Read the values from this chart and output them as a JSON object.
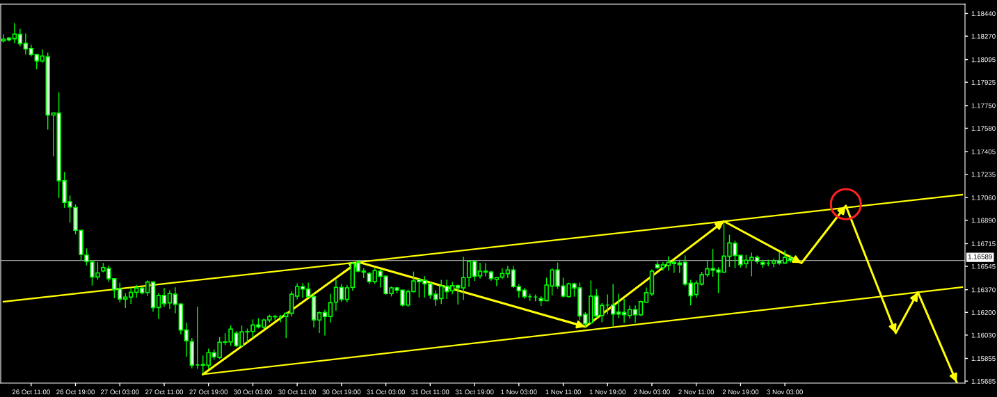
{
  "chart_data": {
    "type": "candlestick",
    "categories": [
      null,
      null,
      null,
      null,
      null,
      "26 Oct 11:00",
      null,
      null,
      null,
      null,
      null,
      null,
      null,
      "26 Oct 19:00",
      null,
      null,
      null,
      null,
      null,
      null,
      null,
      "27 Oct 03:00",
      null,
      null,
      null,
      null,
      null,
      null,
      null,
      "27 Oct 11:00",
      null,
      null,
      null,
      null,
      null,
      null,
      null,
      "27 Oct 19:00",
      null,
      null,
      null,
      null,
      null,
      null,
      null,
      "30 Oct 03:00",
      null,
      null,
      null,
      null,
      null,
      null,
      null,
      "30 Oct 11:00",
      null,
      null,
      null,
      null,
      null,
      null,
      null,
      "30 Oct 19:00",
      null,
      null,
      null,
      null,
      null,
      null,
      null,
      "31 Oct 03:00",
      null,
      null,
      null,
      null,
      null,
      null,
      null,
      "31 Oct 11:00",
      null,
      null,
      null,
      null,
      null,
      null,
      null,
      "31 Oct 19:00",
      null,
      null,
      null,
      null,
      null,
      null,
      null,
      "1 Nov 03:00",
      null,
      null,
      null,
      null,
      null,
      null,
      null,
      "1 Nov 11:00",
      null,
      null,
      null,
      null,
      null,
      null,
      null,
      "1 Nov 19:00",
      null,
      null,
      null,
      null,
      null,
      null,
      null,
      "2 Nov 03:00",
      null,
      null,
      null,
      null,
      null,
      null,
      null,
      "2 Nov 11:00",
      null,
      null,
      null,
      null,
      null,
      null,
      null,
      "2 Nov 19:00",
      null,
      null,
      null,
      null,
      null,
      null,
      null,
      "3 Nov 03:00",
      null,
      null,
      null,
      null,
      null,
      null,
      null,
      null,
      null,
      null,
      null,
      null,
      null,
      null,
      null,
      null,
      null,
      null,
      null,
      null,
      null,
      null,
      null,
      null,
      null,
      null,
      null,
      null,
      null,
      null,
      null,
      null
    ],
    "ylim": [
      1.1567,
      1.1851
    ],
    "yticks": [
      {
        "value": 1.1844,
        "label": "1.18440"
      },
      {
        "value": 1.1827,
        "label": "1.18270"
      },
      1.18095,
      1.17925,
      {
        "value": 1.1775,
        "label": "1.17750"
      },
      {
        "value": 1.1758,
        "label": "1.17580"
      },
      1.17405,
      1.17235,
      {
        "value": 1.1706,
        "label": "1.17060"
      },
      {
        "value": 1.1689,
        "label": "1.16890"
      },
      1.16715,
      1.16545,
      {
        "value": 1.1637,
        "label": "1.16370"
      },
      {
        "value": 1.162,
        "label": "1.16200"
      },
      {
        "value": 1.1603,
        "label": "1.16030"
      },
      1.15855,
      1.15685
    ],
    "ref_lines": [
      {
        "axis": "y",
        "value": 1.16589,
        "label": "1.16589",
        "color": "#a0a0a0"
      }
    ],
    "series": [
      {
        "color": "#00ff00",
        "ohlc": [
          [
            1.18235,
            1.18281,
            1.18226,
            1.18248
          ],
          [
            1.18255,
            1.1826,
            1.18235,
            1.18242
          ],
          [
            1.18251,
            1.18364,
            1.18221,
            1.18286
          ],
          [
            1.18283,
            1.18322,
            1.18198,
            1.18215
          ],
          [
            1.18216,
            1.18286,
            1.18136,
            1.18174
          ],
          [
            1.18178,
            1.18202,
            1.18121,
            1.18132
          ],
          [
            1.18132,
            1.18132,
            1.18026,
            1.18085
          ],
          [
            1.18085,
            1.18166,
            1.18074,
            1.18121
          ],
          [
            1.18116,
            1.18144,
            1.17573,
            1.17679
          ],
          [
            1.17679,
            1.17694,
            1.17373,
            1.17694
          ],
          [
            1.17694,
            1.17846,
            1.17061,
            1.17187
          ],
          [
            1.17187,
            1.1725,
            1.16987,
            1.17024
          ],
          [
            1.1703,
            1.17072,
            1.16877,
            1.1699
          ],
          [
            1.16987,
            1.17006,
            1.16789,
            1.16815
          ],
          [
            1.16815,
            1.16815,
            1.16593,
            1.16634
          ],
          [
            1.1663,
            1.16676,
            1.16556,
            1.16582
          ],
          [
            1.16577,
            1.16587,
            1.16405,
            1.16465
          ],
          [
            1.16465,
            1.16572,
            1.16448,
            1.16496
          ],
          [
            1.16511,
            1.16567,
            1.16504,
            1.16536
          ],
          [
            1.16529,
            1.16547,
            1.16431,
            1.16452
          ],
          [
            1.16452,
            1.16452,
            1.16309,
            1.1637
          ],
          [
            1.16377,
            1.16419,
            1.16278,
            1.163
          ],
          [
            1.163,
            1.1634,
            1.16236,
            1.16314
          ],
          [
            1.16314,
            1.16382,
            1.16267,
            1.16351
          ],
          [
            1.16351,
            1.16401,
            1.16313,
            1.16382
          ],
          [
            1.16382,
            1.16386,
            1.1634,
            1.16346
          ],
          [
            1.16349,
            1.16437,
            1.16327,
            1.16428
          ],
          [
            1.16428,
            1.16428,
            1.16208,
            1.16236
          ],
          [
            1.16236,
            1.16342,
            1.16153,
            1.16327
          ],
          [
            1.16327,
            1.16379,
            1.16244,
            1.16266
          ],
          [
            1.16271,
            1.16362,
            1.16228,
            1.16341
          ],
          [
            1.16336,
            1.16384,
            1.16197,
            1.16261
          ],
          [
            1.16263,
            1.16263,
            1.1604,
            1.16068
          ],
          [
            1.16068,
            1.16118,
            1.1587,
            1.15987
          ],
          [
            1.15981,
            1.16005,
            1.15785,
            1.15804
          ],
          [
            1.15806,
            1.1624,
            1.1578,
            1.15806
          ],
          [
            1.15804,
            1.15872,
            1.15745,
            1.15809
          ],
          [
            1.15804,
            1.15924,
            1.1578,
            1.15898
          ],
          [
            1.15898,
            1.15919,
            1.15849,
            1.15867
          ],
          [
            1.15862,
            1.16011,
            1.15854,
            1.15976
          ],
          [
            1.15976,
            1.1604,
            1.15958,
            1.15979
          ],
          [
            1.15979,
            1.16098,
            1.15953,
            1.16075
          ],
          [
            1.16044,
            1.16057,
            1.15945,
            1.1595
          ],
          [
            1.1595,
            1.16098,
            1.15945,
            1.16054
          ],
          [
            1.16054,
            1.16075,
            1.15979,
            1.16056
          ],
          [
            1.16057,
            1.16144,
            1.16014,
            1.16106
          ],
          [
            1.16106,
            1.16153,
            1.16083,
            1.16092
          ],
          [
            1.16089,
            1.16151,
            1.1608,
            1.16143
          ],
          [
            1.16143,
            1.16179,
            1.16127,
            1.16169
          ],
          [
            1.16169,
            1.16179,
            1.16144,
            1.16167
          ],
          [
            1.16167,
            1.16179,
            1.1613,
            1.16167
          ],
          [
            1.16169,
            1.16197,
            1.16011,
            1.16193
          ],
          [
            1.16193,
            1.16356,
            1.16171,
            1.16336
          ],
          [
            1.16322,
            1.16414,
            1.16301,
            1.16393
          ],
          [
            1.16393,
            1.16414,
            1.16313,
            1.16375
          ],
          [
            1.16375,
            1.16419,
            1.16315,
            1.16318
          ],
          [
            1.16318,
            1.16336,
            1.1609,
            1.16144
          ],
          [
            1.16143,
            1.16205,
            1.16049,
            1.16197
          ],
          [
            1.162,
            1.16217,
            1.16031,
            1.16169
          ],
          [
            1.16169,
            1.16336,
            1.16127,
            1.16273
          ],
          [
            1.16277,
            1.1644,
            1.16217,
            1.16388
          ],
          [
            1.16388,
            1.16409,
            1.16284,
            1.16297
          ],
          [
            1.16297,
            1.16401,
            1.16278,
            1.16384
          ],
          [
            1.16388,
            1.16575,
            1.16367,
            1.16565
          ],
          [
            1.16575,
            1.16587,
            1.16504,
            1.16509
          ],
          [
            1.16509,
            1.16527,
            1.16461,
            1.16502
          ],
          [
            1.16492,
            1.165,
            1.16414,
            1.1643
          ],
          [
            1.1643,
            1.16526,
            1.16419,
            1.16513
          ],
          [
            1.16509,
            1.16518,
            1.16391,
            1.16471
          ],
          [
            1.16471,
            1.16474,
            1.16336,
            1.16341
          ],
          [
            1.16341,
            1.16391,
            1.16323,
            1.16384
          ],
          [
            1.16383,
            1.16388,
            1.16349,
            1.16367
          ],
          [
            1.16367,
            1.16367,
            1.16249,
            1.16255
          ],
          [
            1.16255,
            1.16367,
            1.16245,
            1.16356
          ],
          [
            1.16356,
            1.16502,
            1.16353,
            1.16435
          ],
          [
            1.16445,
            1.16448,
            1.16315,
            1.1643
          ],
          [
            1.1644,
            1.16468,
            1.16315,
            1.16414
          ],
          [
            1.16414,
            1.16422,
            1.16306,
            1.1633
          ],
          [
            1.16336,
            1.16362,
            1.16252,
            1.16297
          ],
          [
            1.16304,
            1.1644,
            1.16266,
            1.16396
          ],
          [
            1.16396,
            1.16441,
            1.16304,
            1.16356
          ],
          [
            1.16362,
            1.16426,
            1.16339,
            1.164
          ],
          [
            1.164,
            1.16405,
            1.16263,
            1.16384
          ],
          [
            1.16383,
            1.16613,
            1.16297,
            1.16461
          ],
          [
            1.16461,
            1.16589,
            1.16396,
            1.16582
          ],
          [
            1.16582,
            1.16582,
            1.1644,
            1.16471
          ],
          [
            1.16474,
            1.16568,
            1.16457,
            1.16509
          ],
          [
            1.16509,
            1.16565,
            1.16474,
            1.16502
          ],
          [
            1.16502,
            1.16509,
            1.16441,
            1.16453
          ],
          [
            1.16448,
            1.16461,
            1.16401,
            1.16461
          ],
          [
            1.16464,
            1.16527,
            1.16453,
            1.16492
          ],
          [
            1.1649,
            1.16544,
            1.16461,
            1.16518
          ],
          [
            1.16518,
            1.16544,
            1.16388,
            1.16393
          ],
          [
            1.16393,
            1.16409,
            1.16313,
            1.16362
          ],
          [
            1.16367,
            1.16379,
            1.16307,
            1.16318
          ],
          [
            1.16318,
            1.16336,
            1.16288,
            1.16318
          ],
          [
            1.16315,
            1.1633,
            1.16287,
            1.16315
          ],
          [
            1.16304,
            1.16318,
            1.16252,
            1.16288
          ],
          [
            1.16288,
            1.16457,
            1.16287,
            1.16405
          ],
          [
            1.16398,
            1.16527,
            1.16331,
            1.16518
          ],
          [
            1.16518,
            1.1657,
            1.1638,
            1.16396
          ],
          [
            1.16398,
            1.16457,
            1.16315,
            1.16322
          ],
          [
            1.16318,
            1.16419,
            1.16315,
            1.16414
          ],
          [
            1.16414,
            1.16419,
            1.16322,
            1.16383
          ],
          [
            1.16383,
            1.16419,
            1.16144,
            1.16174
          ],
          [
            1.16185,
            1.16197,
            1.16089,
            1.16115
          ],
          [
            1.16122,
            1.16436,
            1.16113,
            1.16322
          ],
          [
            1.16322,
            1.16371,
            1.16162,
            1.16174
          ],
          [
            1.16177,
            1.16266,
            1.1613,
            1.16252
          ],
          [
            1.16255,
            1.16331,
            1.16188,
            1.16255
          ],
          [
            1.16255,
            1.16409,
            1.16101,
            1.16188
          ],
          [
            1.16202,
            1.16336,
            1.16162,
            1.16188
          ],
          [
            1.162,
            1.16297,
            1.16124,
            1.16182
          ],
          [
            1.16176,
            1.16247,
            1.16156,
            1.16221
          ],
          [
            1.16221,
            1.16249,
            1.16124,
            1.16182
          ],
          [
            1.16182,
            1.16284,
            1.16176,
            1.1628
          ],
          [
            1.16276,
            1.16383,
            1.16276,
            1.16348
          ],
          [
            1.16339,
            1.16518,
            1.16327,
            1.16509
          ],
          [
            1.16558,
            1.16582,
            1.1653,
            1.16534
          ],
          [
            1.16534,
            1.16573,
            1.16516,
            1.16556
          ],
          [
            1.16552,
            1.16617,
            1.16516,
            1.16575
          ],
          [
            1.16575,
            1.16586,
            1.165,
            1.16565
          ],
          [
            1.1657,
            1.16592,
            1.165,
            1.16558
          ],
          [
            1.16575,
            1.16622,
            1.16401,
            1.16412
          ],
          [
            1.16419,
            1.1644,
            1.16256,
            1.16325
          ],
          [
            1.16334,
            1.16435,
            1.16313,
            1.16419
          ],
          [
            1.16412,
            1.165,
            1.16405,
            1.16482
          ],
          [
            1.16482,
            1.16582,
            1.16469,
            1.16527
          ],
          [
            1.16528,
            1.16671,
            1.16469,
            1.16516
          ],
          [
            1.16518,
            1.16535,
            1.16349,
            1.16502
          ],
          [
            1.16501,
            1.16869,
            1.165,
            1.16622
          ],
          [
            1.1662,
            1.16778,
            1.16544,
            1.16721
          ],
          [
            1.16718,
            1.16735,
            1.16535,
            1.16627
          ],
          [
            1.16627,
            1.16627,
            1.16539,
            1.16558
          ],
          [
            1.16565,
            1.16627,
            1.16535,
            1.16591
          ],
          [
            1.16591,
            1.16645,
            1.16474,
            1.16613
          ],
          [
            1.16613,
            1.16622,
            1.16568,
            1.16582
          ],
          [
            1.16575,
            1.16592,
            1.16539,
            1.16561
          ],
          [
            1.16568,
            1.16592,
            1.16551,
            1.16568
          ],
          [
            1.16568,
            1.16601,
            1.16542,
            1.16586
          ],
          [
            1.16586,
            1.16645,
            1.16561,
            1.1657
          ],
          [
            1.1657,
            1.1666,
            1.16568,
            1.16613
          ],
          [
            1.16604,
            1.16627,
            1.16578,
            1.16589
          ],
          null,
          null,
          null,
          null,
          null,
          null,
          null,
          null,
          null,
          null,
          null,
          null,
          null,
          null,
          null,
          null,
          null,
          null,
          null,
          null,
          null,
          null,
          null,
          null,
          null,
          null,
          null,
          null,
          null,
          null,
          null
        ]
      },
      {
        "type": "line",
        "color": "#ffff00",
        "values": [
          1.1628,
          null,
          null,
          null,
          null,
          null,
          null,
          null,
          null,
          null,
          null,
          null,
          null,
          null,
          null,
          null,
          null,
          null,
          null,
          null,
          null,
          null,
          null,
          null,
          null,
          null,
          null,
          null,
          null,
          null,
          null,
          null,
          null,
          null,
          null,
          null,
          null,
          null,
          null,
          null,
          null,
          null,
          null,
          null,
          null,
          null,
          null,
          null,
          null,
          null,
          null,
          null,
          null,
          null,
          null,
          null,
          null,
          null,
          null,
          null,
          null,
          null,
          null,
          null,
          null,
          null,
          null,
          null,
          null,
          null,
          null,
          null,
          null,
          null,
          null,
          null,
          null,
          null,
          null,
          null,
          null,
          null,
          null,
          null,
          null,
          null,
          null,
          null,
          null,
          null,
          null,
          null,
          null,
          null,
          null,
          null,
          null,
          null,
          null,
          null,
          null,
          null,
          null,
          null,
          null,
          null,
          null,
          null,
          null,
          null,
          null,
          null,
          null,
          null,
          null,
          null,
          null,
          null,
          null,
          null,
          null,
          null,
          null,
          null,
          null,
          null,
          null,
          null,
          null,
          null,
          null,
          null,
          null,
          null,
          null,
          null,
          null,
          null,
          null,
          null,
          null,
          null,
          null,
          null,
          null,
          null,
          null,
          null,
          null,
          null,
          null,
          null,
          null,
          null,
          null,
          null,
          null,
          null,
          null,
          null,
          null,
          null,
          null,
          null,
          null,
          null,
          null,
          null,
          null,
          null,
          null,
          null,
          null,
          1.17082
        ]
      },
      {
        "type": "line",
        "color": "#ffff00",
        "values": [
          null,
          null,
          null,
          null,
          null,
          null,
          null,
          null,
          null,
          null,
          null,
          null,
          null,
          null,
          null,
          null,
          null,
          null,
          null,
          null,
          null,
          null,
          null,
          null,
          null,
          null,
          null,
          null,
          null,
          null,
          null,
          null,
          null,
          null,
          null,
          null,
          1.15736,
          null,
          null,
          null,
          null,
          null,
          null,
          null,
          null,
          null,
          null,
          null,
          null,
          null,
          null,
          null,
          null,
          null,
          null,
          null,
          null,
          null,
          null,
          null,
          null,
          null,
          null,
          null,
          null,
          null,
          null,
          null,
          null,
          null,
          null,
          null,
          null,
          null,
          null,
          null,
          null,
          null,
          null,
          null,
          null,
          null,
          null,
          null,
          null,
          null,
          null,
          null,
          null,
          null,
          null,
          null,
          null,
          null,
          null,
          null,
          null,
          null,
          null,
          null,
          null,
          null,
          null,
          null,
          null,
          null,
          null,
          null,
          null,
          null,
          null,
          null,
          null,
          null,
          null,
          null,
          null,
          null,
          null,
          null,
          null,
          null,
          null,
          null,
          null,
          null,
          null,
          null,
          null,
          null,
          null,
          null,
          null,
          null,
          null,
          null,
          null,
          null,
          null,
          null,
          null,
          null,
          null,
          null,
          null,
          null,
          null,
          null,
          null,
          null,
          null,
          null,
          null,
          null,
          null,
          null,
          null,
          null,
          null,
          null,
          null,
          null,
          null,
          null,
          null,
          null,
          null,
          null,
          null,
          null,
          null,
          null,
          null,
          1.16389
        ]
      },
      {
        "type": "line",
        "color": "#ffff00",
        "values": [
          null,
          null,
          null,
          null,
          null,
          null,
          null,
          null,
          null,
          null,
          null,
          null,
          null,
          null,
          null,
          null,
          null,
          null,
          null,
          null,
          null,
          null,
          null,
          null,
          null,
          null,
          null,
          null,
          null,
          null,
          null,
          null,
          null,
          null,
          null,
          null,
          1.15736,
          null,
          null,
          null,
          null,
          null,
          null,
          null,
          null,
          null,
          null,
          null,
          null,
          null,
          null,
          null,
          null,
          null,
          null,
          null,
          null,
          null,
          null,
          null,
          null,
          null,
          null,
          null,
          1.16578,
          null,
          null,
          null,
          null,
          null,
          null,
          null,
          null,
          null,
          null,
          null,
          null,
          null,
          null,
          null,
          null,
          null,
          null,
          null,
          null,
          null,
          null,
          null,
          null,
          null,
          null,
          null,
          null,
          null,
          null,
          null,
          null,
          null,
          null,
          null,
          null,
          null,
          null,
          null,
          null,
          1.16092,
          null,
          null,
          null,
          null,
          null,
          null,
          null,
          null,
          null,
          null,
          null,
          null,
          null,
          null,
          null,
          null,
          null,
          null,
          null,
          null,
          null,
          null,
          null,
          null,
          1.16883,
          null,
          null,
          null,
          null,
          null,
          null,
          null,
          null,
          null,
          null,
          null,
          null,
          null,
          1.1657,
          null,
          null,
          null,
          null,
          null,
          null,
          null,
          1.16999,
          null,
          null,
          null,
          null,
          null,
          null,
          null,
          null,
          1.16045,
          null,
          null,
          null,
          1.16351,
          null,
          null,
          null,
          null,
          null,
          null,
          1.15676,
          null
        ]
      }
    ]
  }
}
